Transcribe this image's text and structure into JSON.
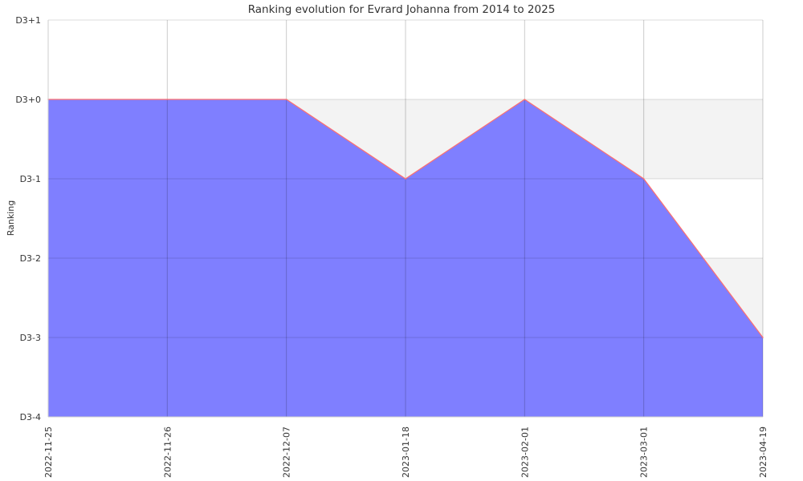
{
  "chart_data": {
    "type": "area",
    "title": "Ranking evolution for Evrard Johanna from 2014 to 2025",
    "xlabel": "",
    "ylabel": "Ranking",
    "x": [
      "2022-11-25",
      "2022-11-26",
      "2022-12-07",
      "2023-01-18",
      "2023-02-01",
      "2023-03-01",
      "2023-04-19"
    ],
    "y_tick_labels": [
      "D3-4",
      "D3-3",
      "D3-2",
      "D3-1",
      "D3+0",
      "D3+1"
    ],
    "ylim": [
      "D3-4",
      "D3+1"
    ],
    "series": [
      {
        "values": [
          "D3+0",
          "D3+0",
          "D3+0",
          "D3-1",
          "D3+0",
          "D3-1",
          "D3-3"
        ]
      }
    ],
    "grid": true,
    "colors": {
      "fill": "#7f7fff",
      "line": "#ff6f6f",
      "band": "#f3f3f3",
      "grid": "#cccccc"
    }
  }
}
